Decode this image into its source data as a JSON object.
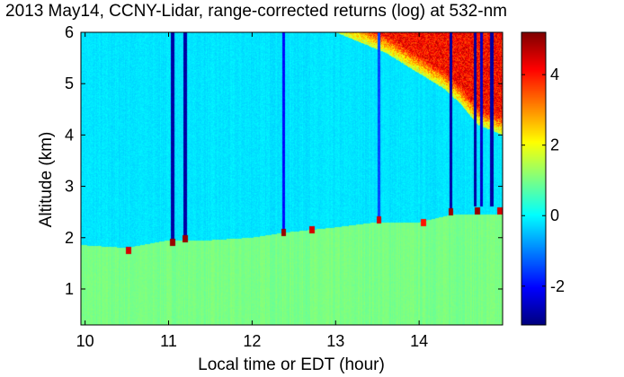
{
  "chart_data": {
    "type": "heatmap",
    "title": "2013 May14, CCNY-Lidar, range-corrected returns (log) at 532-nm",
    "xlabel": "Local time or EDT (hour)",
    "ylabel": "Altitude (km)",
    "xlim": [
      9.95,
      15.0
    ],
    "ylim": [
      0.3,
      6.0
    ],
    "x_ticks": [
      "10",
      "11",
      "12",
      "13",
      "14"
    ],
    "x_tick_values": [
      10,
      11,
      12,
      13,
      14
    ],
    "y_ticks": [
      "1",
      "2",
      "3",
      "4",
      "5",
      "6"
    ],
    "y_tick_values": [
      1,
      2,
      3,
      4,
      5,
      6
    ],
    "colorbar": {
      "colormap": "jet",
      "range": [
        -3.1,
        5.2
      ],
      "ticks": [
        "-2",
        "0",
        "2",
        "4"
      ],
      "tick_values": [
        -2,
        0,
        2,
        4
      ]
    },
    "regions": {
      "free_troposphere_value": -0.2,
      "boundary_layer_value": 1.0,
      "boundary_layer_top_km": [
        {
          "x": 10.0,
          "y": 1.85
        },
        {
          "x": 10.5,
          "y": 1.8
        },
        {
          "x": 11.0,
          "y": 1.95
        },
        {
          "x": 11.5,
          "y": 1.95
        },
        {
          "x": 12.0,
          "y": 2.0
        },
        {
          "x": 12.4,
          "y": 2.1
        },
        {
          "x": 13.0,
          "y": 2.2
        },
        {
          "x": 13.5,
          "y": 2.3
        },
        {
          "x": 14.0,
          "y": 2.3
        },
        {
          "x": 14.4,
          "y": 2.45
        },
        {
          "x": 15.0,
          "y": 2.45
        }
      ],
      "cloud_base_km": [
        {
          "x": 13.0,
          "y": 6.0
        },
        {
          "x": 13.3,
          "y": 5.8
        },
        {
          "x": 13.6,
          "y": 5.6
        },
        {
          "x": 14.0,
          "y": 5.2
        },
        {
          "x": 14.3,
          "y": 4.9
        },
        {
          "x": 14.5,
          "y": 4.6
        },
        {
          "x": 14.7,
          "y": 4.2
        },
        {
          "x": 15.0,
          "y": 4.0
        }
      ],
      "signal_blocked_columns": [
        {
          "x": 11.05,
          "from_km": 1.95,
          "value": -2.8
        },
        {
          "x": 11.2,
          "from_km": 2.05,
          "value": -2.8
        },
        {
          "x": 12.38,
          "from_km": 2.15,
          "value": -2.0
        },
        {
          "x": 13.52,
          "from_km": 2.4,
          "value": -1.5
        },
        {
          "x": 14.38,
          "from_km": 2.55,
          "value": -2.8
        },
        {
          "x": 14.67,
          "from_km": 2.6,
          "value": -2.8
        },
        {
          "x": 14.75,
          "from_km": 2.6,
          "value": -2.5
        },
        {
          "x": 14.87,
          "from_km": 2.6,
          "value": -2.8
        }
      ],
      "low_cloud_spots": [
        {
          "x": 10.52,
          "y": 1.75,
          "value": 4.5
        },
        {
          "x": 11.05,
          "y": 1.9,
          "value": 5.0
        },
        {
          "x": 11.2,
          "y": 1.98,
          "value": 5.0
        },
        {
          "x": 12.38,
          "y": 2.1,
          "value": 5.0
        },
        {
          "x": 12.72,
          "y": 2.15,
          "value": 4.5
        },
        {
          "x": 13.52,
          "y": 2.35,
          "value": 4.5
        },
        {
          "x": 14.05,
          "y": 2.3,
          "value": 4.0
        },
        {
          "x": 14.38,
          "y": 2.5,
          "value": 5.0
        },
        {
          "x": 14.7,
          "y": 2.52,
          "value": 5.0
        },
        {
          "x": 14.97,
          "y": 2.52,
          "value": 4.5
        }
      ]
    }
  }
}
